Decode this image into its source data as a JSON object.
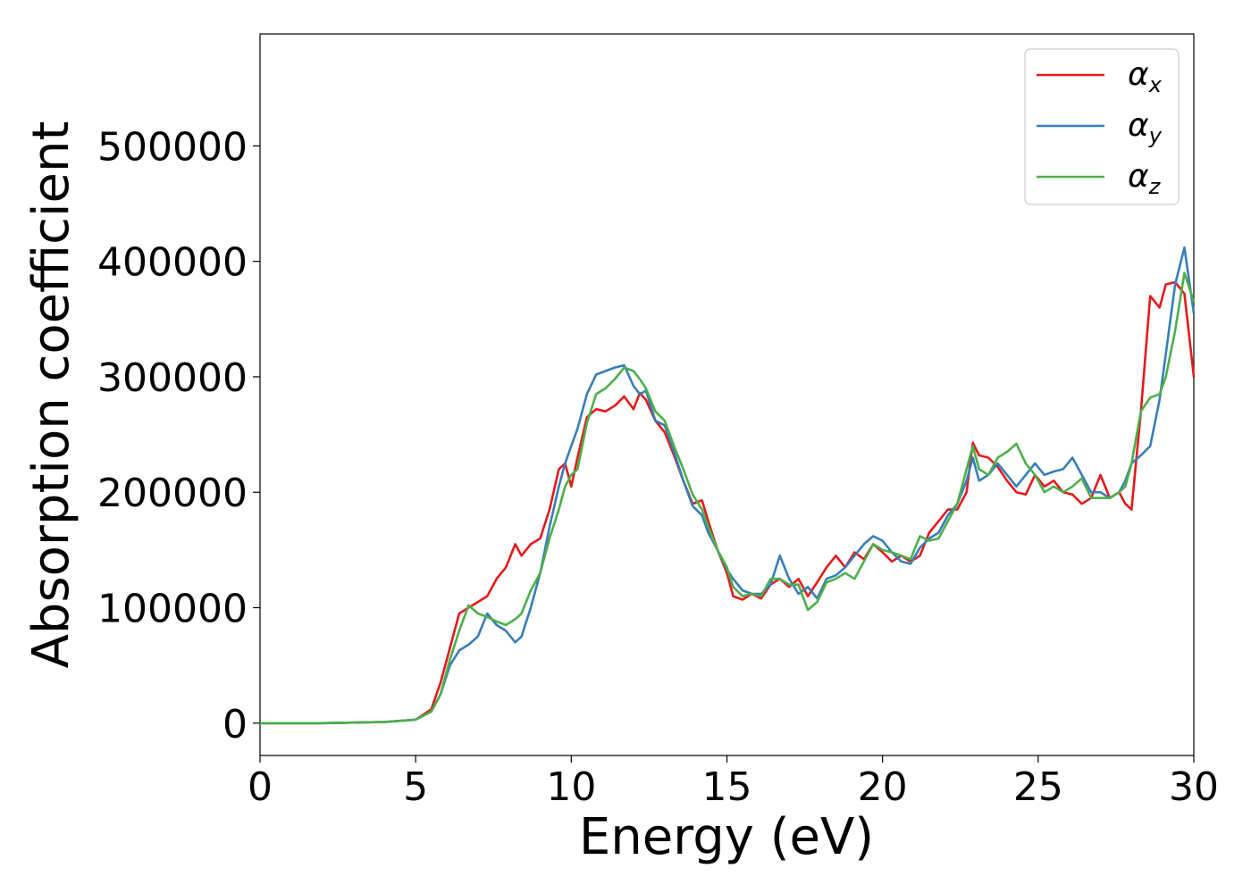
{
  "chart_data": {
    "type": "line",
    "title": "",
    "xlabel": "Energy (eV)",
    "ylabel": "Absorption coefficient",
    "xlim": [
      0,
      30
    ],
    "ylim": [
      -28000,
      597000
    ],
    "xticks": [
      0,
      5,
      10,
      15,
      20,
      25,
      30
    ],
    "yticks": [
      0,
      100000,
      200000,
      300000,
      400000,
      500000
    ],
    "grid": false,
    "legend_position": "top-right",
    "series": [
      {
        "name": "α",
        "subscript": "x",
        "color": "#e41a1c",
        "x": [
          0,
          2,
          4,
          5,
          5.5,
          5.8,
          6.1,
          6.4,
          6.7,
          7.0,
          7.3,
          7.6,
          7.9,
          8.2,
          8.4,
          8.7,
          9.0,
          9.3,
          9.6,
          9.8,
          10.0,
          10.2,
          10.5,
          10.8,
          11.1,
          11.4,
          11.7,
          12.0,
          12.2,
          12.4,
          12.7,
          13.0,
          13.3,
          13.6,
          13.9,
          14.2,
          14.4,
          14.7,
          15.0,
          15.2,
          15.5,
          15.8,
          16.1,
          16.4,
          16.7,
          17.0,
          17.3,
          17.6,
          17.9,
          18.2,
          18.5,
          18.8,
          19.1,
          19.4,
          19.7,
          20.0,
          20.3,
          20.6,
          20.9,
          21.2,
          21.5,
          21.8,
          22.1,
          22.4,
          22.7,
          22.9,
          23.1,
          23.4,
          23.7,
          24.0,
          24.3,
          24.6,
          24.9,
          25.2,
          25.5,
          25.8,
          26.1,
          26.4,
          26.7,
          27.0,
          27.3,
          27.6,
          27.8,
          28.0,
          28.3,
          28.6,
          28.9,
          29.1,
          29.4,
          29.7,
          30.0
        ],
        "values": [
          0,
          0,
          1000,
          3000,
          12000,
          35000,
          65000,
          95000,
          100000,
          105000,
          110000,
          125000,
          135000,
          155000,
          145000,
          155000,
          160000,
          185000,
          220000,
          225000,
          205000,
          230000,
          265000,
          272000,
          270000,
          275000,
          283000,
          272000,
          286000,
          280000,
          262000,
          252000,
          232000,
          210000,
          190000,
          193000,
          175000,
          150000,
          130000,
          110000,
          107000,
          112000,
          108000,
          120000,
          125000,
          118000,
          125000,
          110000,
          122000,
          135000,
          145000,
          135000,
          148000,
          142000,
          155000,
          148000,
          140000,
          145000,
          140000,
          145000,
          165000,
          175000,
          185000,
          185000,
          200000,
          243000,
          232000,
          230000,
          222000,
          210000,
          200000,
          198000,
          215000,
          205000,
          210000,
          200000,
          198000,
          190000,
          195000,
          215000,
          195000,
          200000,
          190000,
          185000,
          270000,
          370000,
          360000,
          380000,
          382000,
          372000,
          300000
        ]
      },
      {
        "name": "α",
        "subscript": "y",
        "color": "#377eb8",
        "x": [
          0,
          2,
          4,
          5,
          5.5,
          5.8,
          6.1,
          6.4,
          6.7,
          7.0,
          7.3,
          7.6,
          7.9,
          8.2,
          8.4,
          8.7,
          9.0,
          9.3,
          9.6,
          9.8,
          10.0,
          10.2,
          10.5,
          10.8,
          11.1,
          11.4,
          11.7,
          12.0,
          12.2,
          12.4,
          12.7,
          13.0,
          13.3,
          13.6,
          13.9,
          14.2,
          14.4,
          14.7,
          15.0,
          15.2,
          15.5,
          15.8,
          16.1,
          16.4,
          16.7,
          17.0,
          17.3,
          17.6,
          17.9,
          18.2,
          18.5,
          18.8,
          19.1,
          19.4,
          19.7,
          20.0,
          20.3,
          20.6,
          20.9,
          21.2,
          21.5,
          21.8,
          22.1,
          22.4,
          22.7,
          22.9,
          23.1,
          23.4,
          23.7,
          24.0,
          24.3,
          24.6,
          24.9,
          25.2,
          25.5,
          25.8,
          26.1,
          26.4,
          26.7,
          27.0,
          27.3,
          27.6,
          27.8,
          28.0,
          28.3,
          28.6,
          28.9,
          29.1,
          29.4,
          29.7,
          30.0
        ],
        "values": [
          0,
          0,
          1000,
          3000,
          10000,
          25000,
          50000,
          63000,
          68000,
          75000,
          95000,
          85000,
          80000,
          70000,
          75000,
          100000,
          130000,
          170000,
          205000,
          225000,
          240000,
          255000,
          285000,
          302000,
          305000,
          308000,
          310000,
          292000,
          285000,
          288000,
          262000,
          258000,
          235000,
          210000,
          188000,
          180000,
          165000,
          150000,
          133000,
          125000,
          115000,
          112000,
          112000,
          120000,
          145000,
          125000,
          112000,
          118000,
          108000,
          125000,
          128000,
          135000,
          145000,
          155000,
          162000,
          158000,
          148000,
          140000,
          138000,
          152000,
          160000,
          165000,
          180000,
          190000,
          210000,
          230000,
          210000,
          215000,
          225000,
          215000,
          205000,
          215000,
          225000,
          215000,
          218000,
          220000,
          230000,
          215000,
          200000,
          200000,
          195000,
          200000,
          210000,
          225000,
          232000,
          240000,
          280000,
          320000,
          380000,
          412000,
          355000
        ]
      },
      {
        "name": "α",
        "subscript": "z",
        "color": "#4daf4a",
        "x": [
          0,
          2,
          4,
          5,
          5.5,
          5.8,
          6.1,
          6.4,
          6.7,
          7.0,
          7.3,
          7.6,
          7.9,
          8.2,
          8.4,
          8.7,
          9.0,
          9.3,
          9.6,
          9.8,
          10.0,
          10.2,
          10.5,
          10.8,
          11.1,
          11.4,
          11.7,
          12.0,
          12.2,
          12.4,
          12.7,
          13.0,
          13.3,
          13.6,
          13.9,
          14.2,
          14.4,
          14.7,
          15.0,
          15.2,
          15.5,
          15.8,
          16.1,
          16.4,
          16.7,
          17.0,
          17.3,
          17.6,
          17.9,
          18.2,
          18.5,
          18.8,
          19.1,
          19.4,
          19.7,
          20.0,
          20.3,
          20.6,
          20.9,
          21.2,
          21.5,
          21.8,
          22.1,
          22.4,
          22.7,
          22.9,
          23.1,
          23.4,
          23.7,
          24.0,
          24.3,
          24.6,
          24.9,
          25.2,
          25.5,
          25.8,
          26.1,
          26.4,
          26.7,
          27.0,
          27.3,
          27.6,
          27.8,
          28.0,
          28.3,
          28.6,
          28.9,
          29.1,
          29.4,
          29.7,
          30.0
        ],
        "values": [
          0,
          0,
          1000,
          3000,
          10000,
          25000,
          55000,
          80000,
          102000,
          95000,
          92000,
          88000,
          85000,
          90000,
          95000,
          115000,
          130000,
          160000,
          185000,
          205000,
          215000,
          220000,
          260000,
          285000,
          290000,
          298000,
          308000,
          305000,
          298000,
          290000,
          270000,
          262000,
          240000,
          220000,
          198000,
          185000,
          170000,
          150000,
          135000,
          118000,
          110000,
          112000,
          110000,
          125000,
          125000,
          120000,
          120000,
          98000,
          105000,
          122000,
          125000,
          130000,
          125000,
          140000,
          155000,
          150000,
          148000,
          145000,
          142000,
          162000,
          158000,
          160000,
          175000,
          190000,
          220000,
          240000,
          220000,
          215000,
          230000,
          235000,
          242000,
          225000,
          215000,
          200000,
          205000,
          200000,
          205000,
          212000,
          195000,
          195000,
          195000,
          200000,
          205000,
          225000,
          270000,
          282000,
          285000,
          300000,
          340000,
          390000,
          365000
        ]
      }
    ]
  }
}
